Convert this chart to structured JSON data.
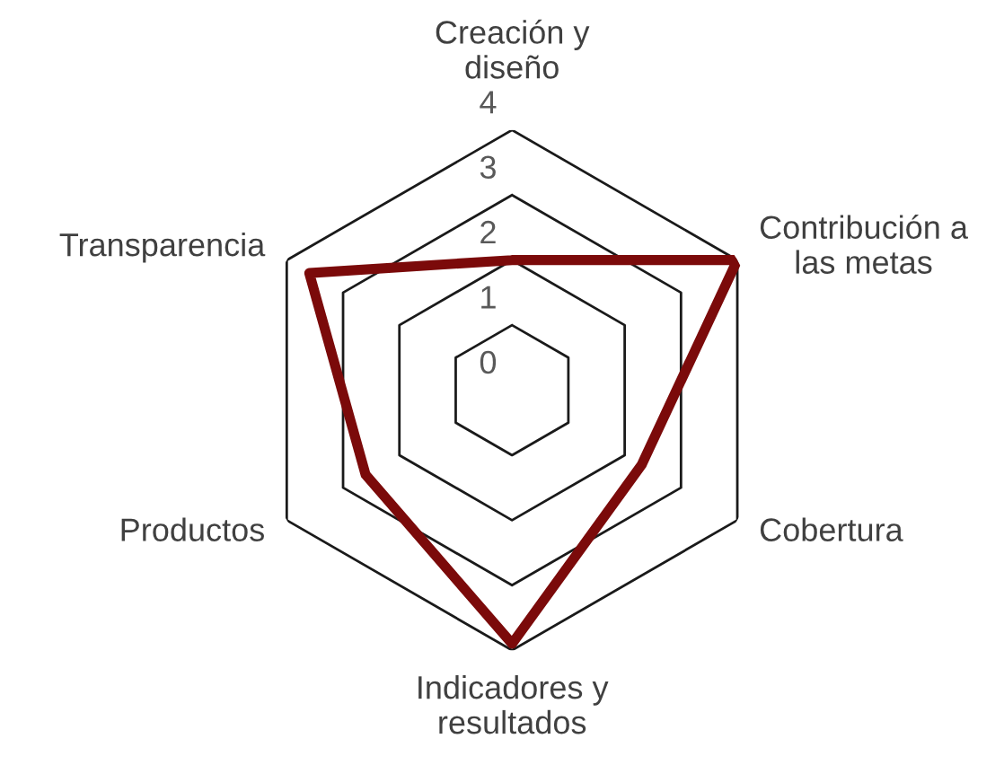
{
  "chart_data": {
    "type": "radar",
    "categories": [
      "Creación y\ndiseño",
      "Contribución a\nlas metas",
      "Cobertura",
      "Indicadores y\nresultados",
      "Productos",
      "Transparencia"
    ],
    "series": [
      {
        "color": "#7b0a0a",
        "values": [
          2,
          4,
          2.3,
          3.9,
          2.6,
          3.6
        ]
      }
    ],
    "ylim": [
      0,
      4
    ],
    "yticks": [
      0,
      1,
      2,
      3,
      4
    ],
    "grid": true
  }
}
